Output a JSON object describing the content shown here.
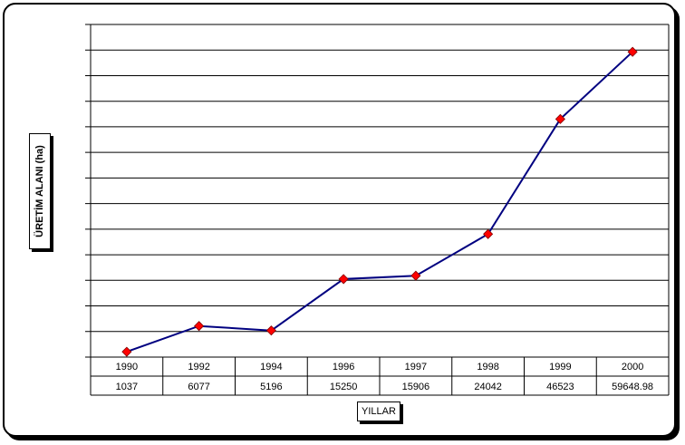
{
  "chart_data": {
    "type": "line",
    "title": "",
    "xlabel": "YILLAR",
    "ylabel": "ÜRETİM ALANI (ha)",
    "categories": [
      "1990",
      "1992",
      "1994",
      "1996",
      "1997",
      "1998",
      "1999",
      "2000"
    ],
    "table_values": [
      "1037",
      "6077",
      "5196",
      "15250",
      "15906",
      "24042",
      "46523",
      "59648.98"
    ],
    "series": [
      {
        "values": [
          1037,
          6077,
          5196,
          15250,
          15906,
          24042,
          46523,
          59648.98
        ]
      }
    ],
    "ylim": [
      0,
      65000
    ],
    "grid": true,
    "legend": "none",
    "colors": {
      "line": "#000080",
      "marker": "#ff0000"
    }
  }
}
